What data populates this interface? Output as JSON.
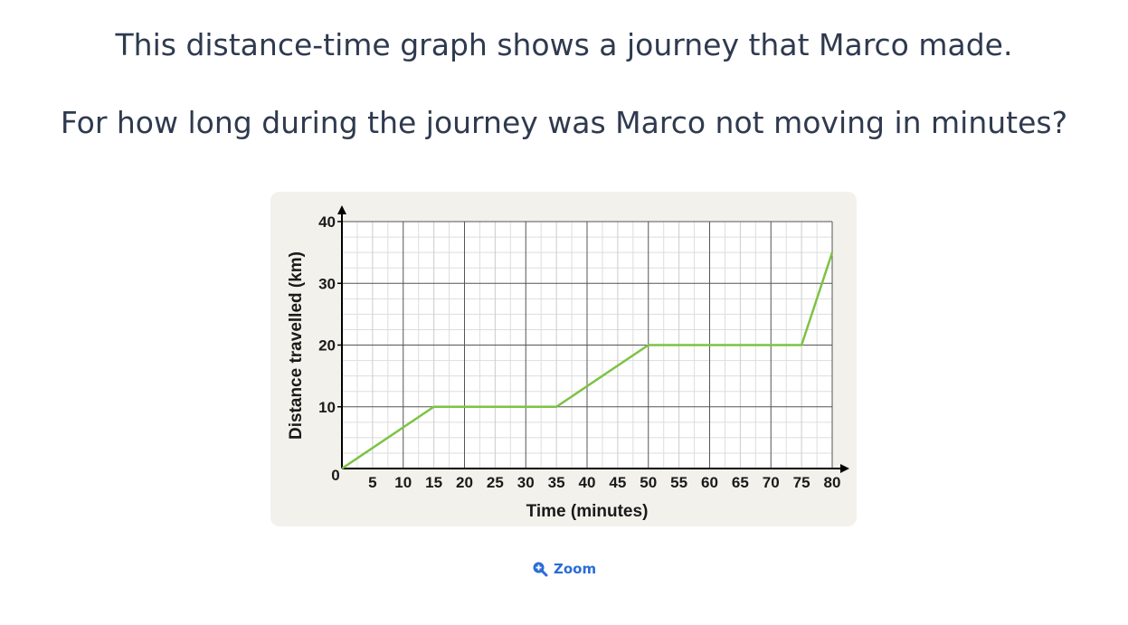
{
  "question": {
    "line1": "This distance-time graph shows a journey that Marco made.",
    "line2": "For how long during the journey was Marco not moving in minutes?"
  },
  "zoom": {
    "label": "Zoom",
    "icon": "zoom-in-icon"
  },
  "chart_data": {
    "type": "line",
    "title": "",
    "xlabel": "Time (minutes)",
    "ylabel": "Distance travelled (km)",
    "xlim": [
      0,
      80
    ],
    "ylim": [
      0,
      40
    ],
    "x_ticks": [
      "0",
      "5",
      "10",
      "15",
      "20",
      "25",
      "30",
      "35",
      "40",
      "45",
      "50",
      "55",
      "60",
      "65",
      "70",
      "75",
      "80"
    ],
    "y_ticks": [
      "10",
      "20",
      "30",
      "40"
    ],
    "grid": true,
    "line_color": "#7dc242",
    "series": [
      {
        "x": [
          0,
          15,
          35,
          50,
          75,
          80
        ],
        "y": [
          0,
          10,
          10,
          20,
          20,
          35
        ]
      }
    ]
  }
}
